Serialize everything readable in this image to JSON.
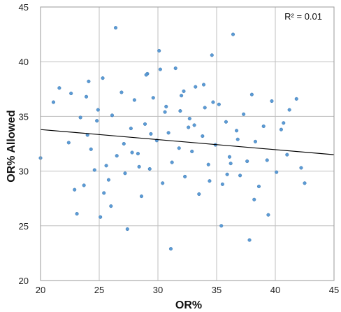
{
  "chart_data": {
    "type": "scatter",
    "title": "",
    "xlabel": "OR%",
    "ylabel": "OR% Allowed",
    "xlim": [
      20,
      45
    ],
    "ylim": [
      20,
      45
    ],
    "xticks": [
      20,
      25,
      30,
      35,
      40,
      45
    ],
    "yticks": [
      20,
      25,
      30,
      35,
      40,
      45
    ],
    "grid": true,
    "annotation": "R² = 0.01",
    "point_color": "#5b9bd5",
    "point_edge_color": "#3f78b0",
    "trendline": {
      "type": "linear",
      "color": "#000000",
      "x": [
        20,
        45
      ],
      "y": [
        33.8,
        31.5
      ]
    },
    "series": [
      {
        "x": [
          20.0,
          21.6,
          21.1,
          22.4,
          22.6,
          22.9,
          23.4,
          23.7,
          23.9,
          24.1,
          24.3,
          24.0,
          24.8,
          24.9,
          25.1,
          25.3,
          25.6,
          25.8,
          26.1,
          26.4,
          26.5,
          26.9,
          27.2,
          27.4,
          27.7,
          28.0,
          28.3,
          28.6,
          28.9,
          29.1,
          29.3,
          29.6,
          29.9,
          30.1,
          30.4,
          30.6,
          30.9,
          31.2,
          31.5,
          31.8,
          32.0,
          32.3,
          32.6,
          32.9,
          33.2,
          33.5,
          33.8,
          34.0,
          34.3,
          34.6,
          34.9,
          35.2,
          35.5,
          35.8,
          36.1,
          36.4,
          36.7,
          37.0,
          37.3,
          37.6,
          38.0,
          38.3,
          38.6,
          39.0,
          39.3,
          39.7,
          40.1,
          40.5,
          41.0,
          41.2,
          41.8,
          42.2,
          42.5,
          26.0,
          27.8,
          29.4,
          31.1,
          32.7,
          33.9,
          35.4,
          36.8,
          38.2,
          24.6,
          30.2,
          33.1,
          28.4,
          31.9,
          34.7,
          36.2,
          29.0,
          32.2,
          34.4,
          30.7,
          27.1,
          35.9,
          39.4,
          23.1,
          40.7,
          25.4,
          37.8
        ],
        "y": [
          31.2,
          37.6,
          36.3,
          32.6,
          37.1,
          28.3,
          34.9,
          28.7,
          36.8,
          38.2,
          32.0,
          33.3,
          34.6,
          35.6,
          25.8,
          38.5,
          30.5,
          29.2,
          35.1,
          43.1,
          31.4,
          37.2,
          29.8,
          24.7,
          33.9,
          36.5,
          31.6,
          27.7,
          34.3,
          38.9,
          30.2,
          36.7,
          32.8,
          41.0,
          28.9,
          35.4,
          33.5,
          30.8,
          39.4,
          32.1,
          36.9,
          29.5,
          34.0,
          31.8,
          37.7,
          27.9,
          33.2,
          35.8,
          30.6,
          40.6,
          32.4,
          36.1,
          28.8,
          34.5,
          31.3,
          42.5,
          33.7,
          29.6,
          35.2,
          30.9,
          37.0,
          32.7,
          28.6,
          34.1,
          31.0,
          36.4,
          29.9,
          33.8,
          31.5,
          35.6,
          36.6,
          30.3,
          28.9,
          26.8,
          31.7,
          33.4,
          22.9,
          34.8,
          37.9,
          25.0,
          32.9,
          27.4,
          30.1,
          39.3,
          34.2,
          30.4,
          35.5,
          36.3,
          30.7,
          38.8,
          37.3,
          29.1,
          35.9,
          32.5,
          29.7,
          26.0,
          26.1,
          34.4,
          28.0,
          23.7
        ]
      }
    ]
  }
}
